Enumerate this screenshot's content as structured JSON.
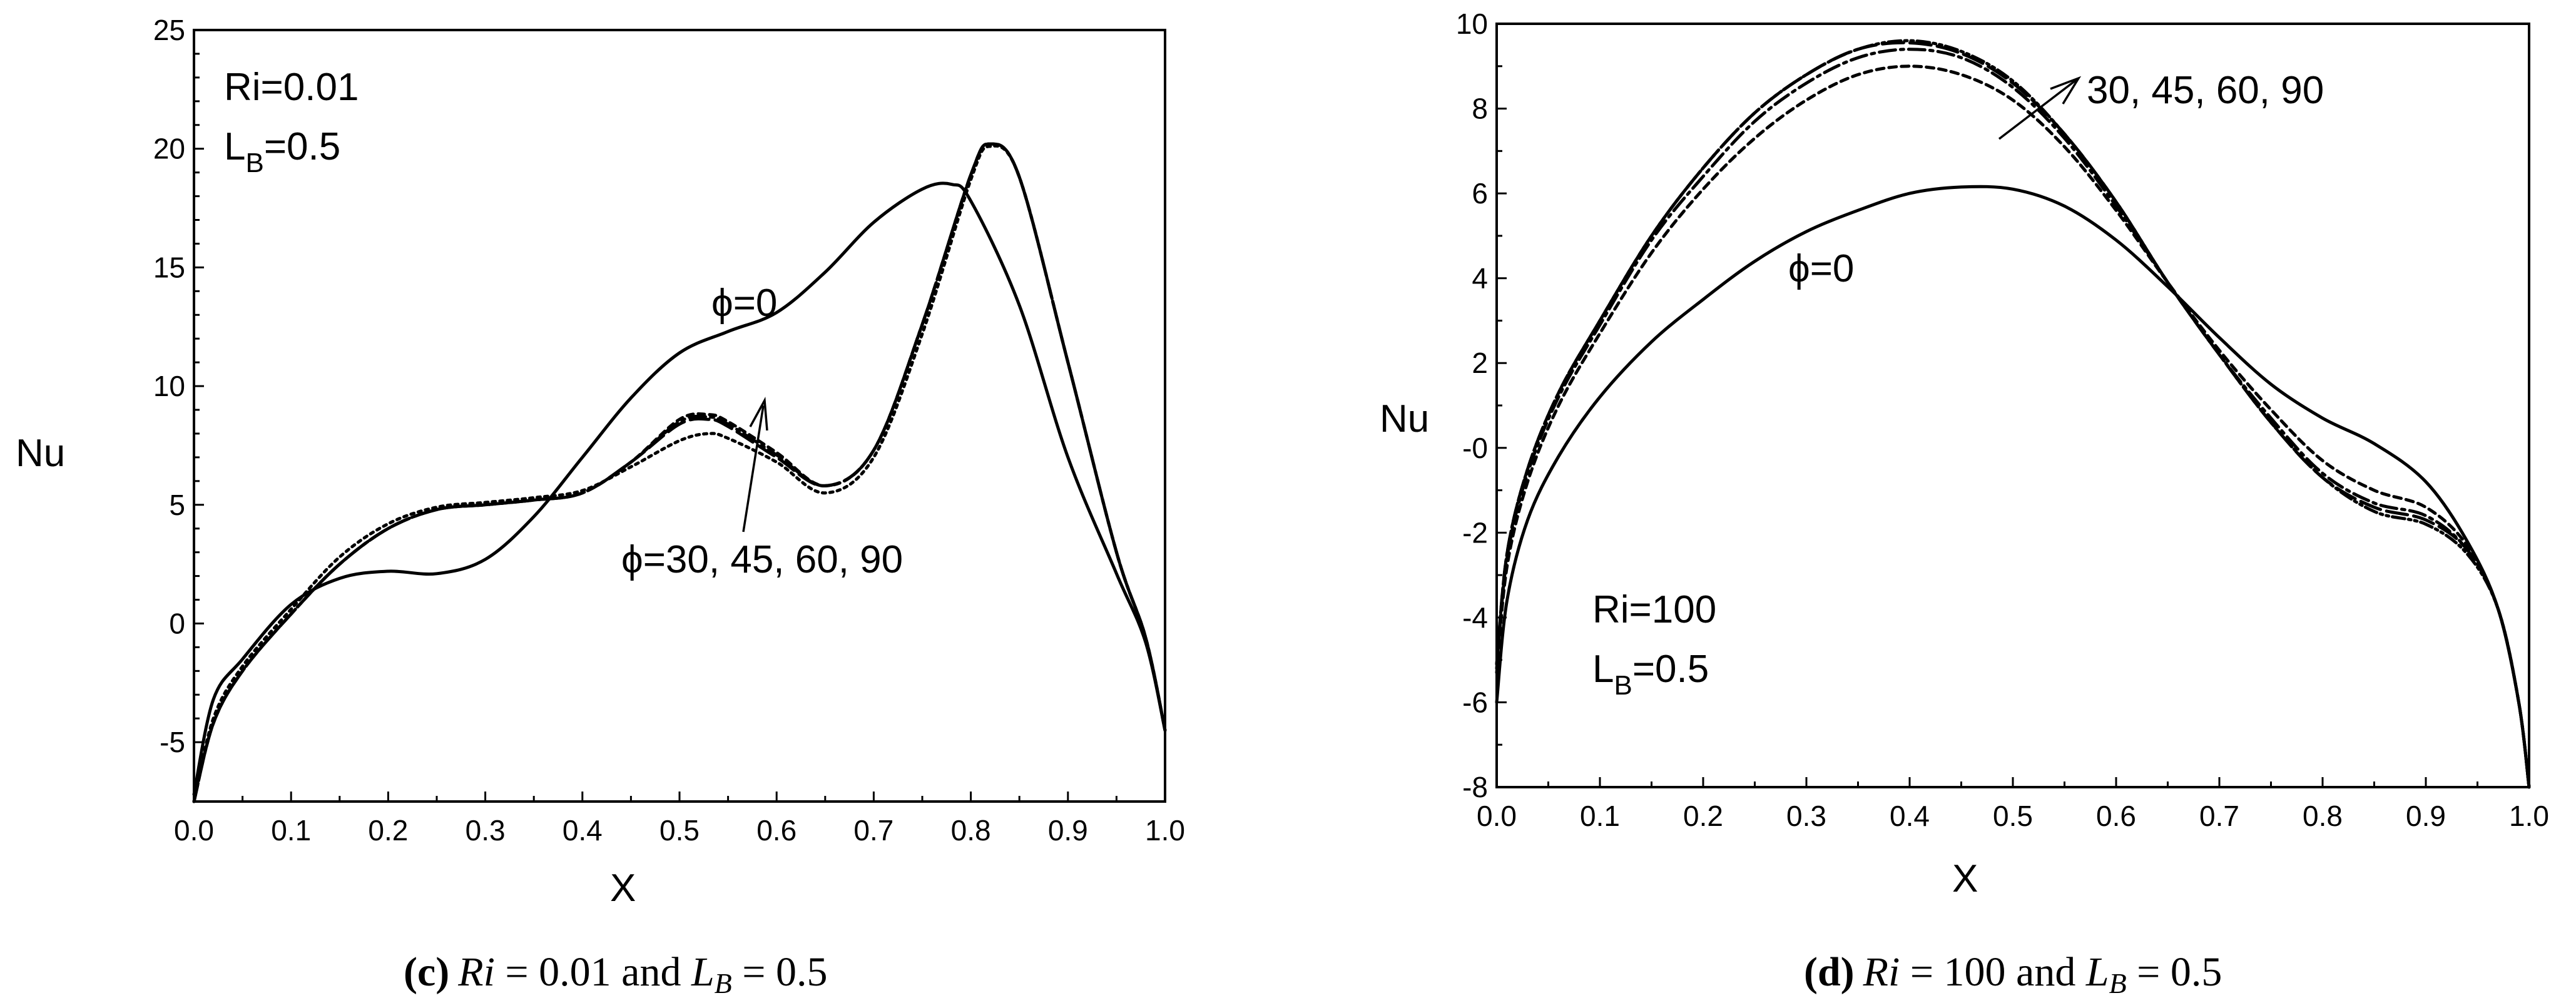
{
  "chart_data": [
    {
      "type": "line",
      "panel": "c",
      "xlabel": "X",
      "ylabel": "Nu",
      "xlim": [
        0.0,
        1.0
      ],
      "ylim": [
        -7.5,
        25
      ],
      "x_ticks": [
        "0.0",
        "0.1",
        "0.2",
        "0.3",
        "0.4",
        "0.5",
        "0.6",
        "0.7",
        "0.8",
        "0.9",
        "1.0"
      ],
      "y_ticks": [
        "-5",
        "0",
        "5",
        "10",
        "15",
        "20",
        "25"
      ],
      "annotations": {
        "ri": "Ri=0.01",
        "lb_main": "L",
        "lb_sub": "B",
        "lb_value": "=0.5",
        "phi0": "ϕ=0",
        "phi_group": "ϕ=30, 45, 60, 90"
      },
      "caption": {
        "letter": "(c)",
        "ri_sym": "Ri",
        "ri_text": " = 0.01 and ",
        "lb_sym": "L",
        "lb_sub": "B",
        "lb_text": " = 0.5"
      },
      "series": [
        {
          "name": "ϕ=0",
          "dash": "solid",
          "x": [
            0.0,
            0.02,
            0.05,
            0.1,
            0.15,
            0.2,
            0.25,
            0.3,
            0.35,
            0.4,
            0.45,
            0.5,
            0.55,
            0.6,
            0.65,
            0.7,
            0.75,
            0.78,
            0.8,
            0.85,
            0.9,
            0.95,
            0.98,
            1.0
          ],
          "y": [
            -7.2,
            -3.2,
            -1.5,
            0.8,
            1.9,
            2.2,
            2.1,
            2.7,
            4.5,
            7.0,
            9.5,
            11.4,
            12.3,
            13.1,
            14.8,
            16.9,
            18.3,
            18.5,
            17.8,
            13.4,
            7.0,
            2.1,
            -0.8,
            -4.5
          ]
        },
        {
          "name": "ϕ=30",
          "dash": "10 8",
          "x": [
            0.0,
            0.02,
            0.05,
            0.1,
            0.15,
            0.2,
            0.25,
            0.3,
            0.35,
            0.4,
            0.45,
            0.5,
            0.53,
            0.55,
            0.6,
            0.65,
            0.7,
            0.75,
            0.8,
            0.82,
            0.85,
            0.9,
            0.95,
            0.98,
            1.0
          ],
          "y": [
            -7.5,
            -4.2,
            -2.0,
            0.4,
            2.5,
            4.0,
            4.8,
            5.0,
            5.2,
            5.5,
            6.8,
            8.6,
            8.8,
            8.5,
            7.2,
            5.8,
            7.3,
            12.6,
            18.9,
            20.2,
            18.8,
            11.0,
            3.0,
            -0.6,
            -4.5
          ]
        },
        {
          "name": "ϕ=45",
          "dash": "26 8 5 8",
          "x": [
            0.0,
            0.02,
            0.05,
            0.1,
            0.15,
            0.2,
            0.25,
            0.3,
            0.35,
            0.4,
            0.45,
            0.5,
            0.53,
            0.55,
            0.6,
            0.65,
            0.7,
            0.75,
            0.8,
            0.82,
            0.85,
            0.9,
            0.95,
            0.98,
            1.0
          ],
          "y": [
            -7.5,
            -4.2,
            -2.0,
            0.4,
            2.5,
            4.0,
            4.8,
            5.0,
            5.2,
            5.5,
            6.8,
            8.5,
            8.7,
            8.4,
            7.1,
            5.8,
            7.3,
            12.6,
            18.9,
            20.2,
            18.8,
            11.0,
            3.0,
            -0.6,
            -4.5
          ]
        },
        {
          "name": "ϕ=60",
          "dash": "30 10",
          "x": [
            0.0,
            0.02,
            0.05,
            0.1,
            0.15,
            0.2,
            0.25,
            0.3,
            0.35,
            0.4,
            0.45,
            0.5,
            0.53,
            0.55,
            0.6,
            0.65,
            0.7,
            0.75,
            0.8,
            0.82,
            0.85,
            0.9,
            0.95,
            0.98,
            1.0
          ],
          "y": [
            -7.5,
            -4.2,
            -2.0,
            0.4,
            2.5,
            4.0,
            4.8,
            5.0,
            5.2,
            5.5,
            6.8,
            8.4,
            8.6,
            8.3,
            7.0,
            5.8,
            7.3,
            12.6,
            18.9,
            20.2,
            18.8,
            11.0,
            3.0,
            -0.6,
            -4.5
          ]
        },
        {
          "name": "ϕ=90",
          "dash": "5 7",
          "x": [
            0.0,
            0.02,
            0.05,
            0.1,
            0.15,
            0.2,
            0.25,
            0.3,
            0.35,
            0.4,
            0.45,
            0.5,
            0.53,
            0.55,
            0.6,
            0.65,
            0.7,
            0.75,
            0.8,
            0.82,
            0.85,
            0.9,
            0.95,
            0.98,
            1.0
          ],
          "y": [
            -7.5,
            -4.0,
            -1.8,
            0.6,
            2.8,
            4.2,
            4.9,
            5.1,
            5.3,
            5.6,
            6.6,
            7.7,
            8.0,
            7.8,
            6.8,
            5.5,
            7.0,
            12.2,
            18.7,
            20.1,
            18.8,
            11.0,
            3.0,
            -0.6,
            -4.5
          ]
        }
      ]
    },
    {
      "type": "line",
      "panel": "d",
      "xlabel": "X",
      "ylabel": "Nu",
      "xlim": [
        0.0,
        1.0
      ],
      "ylim": [
        -8,
        10
      ],
      "x_ticks": [
        "0.0",
        "0.1",
        "0.2",
        "0.3",
        "0.4",
        "0.5",
        "0.6",
        "0.7",
        "0.8",
        "0.9",
        "1.0"
      ],
      "y_ticks": [
        "-8",
        "-6",
        "-4",
        "-2",
        "-0",
        "2",
        "4",
        "6",
        "8",
        "10"
      ],
      "annotations": {
        "ri": "Ri=100",
        "lb_main": "L",
        "lb_sub": "B",
        "lb_value": "=0.5",
        "phi0": "ϕ=0",
        "phi_group": "30, 45, 60, 90"
      },
      "caption": {
        "letter": "(d)",
        "ri_sym": "Ri",
        "ri_text": " = 100 and ",
        "lb_sym": "L",
        "lb_sub": "B",
        "lb_text": " = 0.5"
      },
      "series": [
        {
          "name": "ϕ=0",
          "dash": "solid",
          "x": [
            0.0,
            0.01,
            0.03,
            0.06,
            0.1,
            0.15,
            0.2,
            0.25,
            0.3,
            0.35,
            0.4,
            0.45,
            0.5,
            0.55,
            0.6,
            0.65,
            0.7,
            0.75,
            0.8,
            0.85,
            0.9,
            0.94,
            0.97,
            0.99,
            1.0
          ],
          "y": [
            -6.0,
            -3.6,
            -1.7,
            -0.2,
            1.2,
            2.5,
            3.5,
            4.4,
            5.1,
            5.6,
            6.0,
            6.15,
            6.1,
            5.7,
            4.9,
            3.8,
            2.6,
            1.5,
            0.7,
            0.1,
            -0.8,
            -2.2,
            -3.8,
            -6.0,
            -8.0
          ]
        },
        {
          "name": "ϕ=30",
          "dash": "12 8",
          "x": [
            0.0,
            0.01,
            0.03,
            0.06,
            0.1,
            0.15,
            0.2,
            0.25,
            0.3,
            0.35,
            0.4,
            0.45,
            0.5,
            0.55,
            0.6,
            0.65,
            0.7,
            0.75,
            0.8,
            0.85,
            0.9,
            0.94,
            0.97,
            0.99,
            1.0
          ],
          "y": [
            -5.3,
            -2.8,
            -0.8,
            1.0,
            2.7,
            4.6,
            6.1,
            7.3,
            8.2,
            8.8,
            9.0,
            8.8,
            8.2,
            7.1,
            5.6,
            3.9,
            2.3,
            0.9,
            -0.3,
            -1.0,
            -1.4,
            -2.3,
            -3.8,
            -6.0,
            -8.0
          ]
        },
        {
          "name": "ϕ=45",
          "dash": "26 8 5 8",
          "x": [
            0.0,
            0.01,
            0.03,
            0.06,
            0.1,
            0.15,
            0.2,
            0.25,
            0.3,
            0.35,
            0.4,
            0.45,
            0.5,
            0.55,
            0.6,
            0.65,
            0.7,
            0.75,
            0.8,
            0.85,
            0.9,
            0.94,
            0.97,
            0.99,
            1.0
          ],
          "y": [
            -5.2,
            -2.6,
            -0.6,
            1.2,
            2.9,
            4.9,
            6.4,
            7.7,
            8.6,
            9.2,
            9.4,
            9.2,
            8.5,
            7.3,
            5.7,
            3.9,
            2.2,
            0.7,
            -0.6,
            -1.3,
            -1.6,
            -2.4,
            -3.8,
            -6.0,
            -8.0
          ]
        },
        {
          "name": "ϕ=60",
          "dash": "34 10",
          "x": [
            0.0,
            0.01,
            0.03,
            0.06,
            0.1,
            0.15,
            0.2,
            0.25,
            0.3,
            0.35,
            0.4,
            0.45,
            0.5,
            0.55,
            0.6,
            0.65,
            0.7,
            0.75,
            0.8,
            0.85,
            0.9,
            0.94,
            0.97,
            0.99,
            1.0
          ],
          "y": [
            -5.1,
            -2.5,
            -0.5,
            1.3,
            3.0,
            5.0,
            6.6,
            7.9,
            8.8,
            9.4,
            9.55,
            9.3,
            8.6,
            7.4,
            5.8,
            3.9,
            2.2,
            0.6,
            -0.7,
            -1.4,
            -1.7,
            -2.4,
            -3.8,
            -6.0,
            -8.0
          ]
        },
        {
          "name": "ϕ=90",
          "dash": "20 6 4 6 4 6",
          "x": [
            0.0,
            0.01,
            0.03,
            0.06,
            0.1,
            0.15,
            0.2,
            0.25,
            0.3,
            0.35,
            0.4,
            0.45,
            0.5,
            0.55,
            0.6,
            0.65,
            0.7,
            0.75,
            0.8,
            0.85,
            0.9,
            0.94,
            0.97,
            0.99,
            1.0
          ],
          "y": [
            -5.1,
            -2.5,
            -0.5,
            1.3,
            3.0,
            5.0,
            6.6,
            7.9,
            8.8,
            9.4,
            9.6,
            9.35,
            8.65,
            7.4,
            5.8,
            3.9,
            2.2,
            0.6,
            -0.7,
            -1.5,
            -1.8,
            -2.5,
            -3.8,
            -6.0,
            -8.0
          ]
        }
      ]
    }
  ]
}
